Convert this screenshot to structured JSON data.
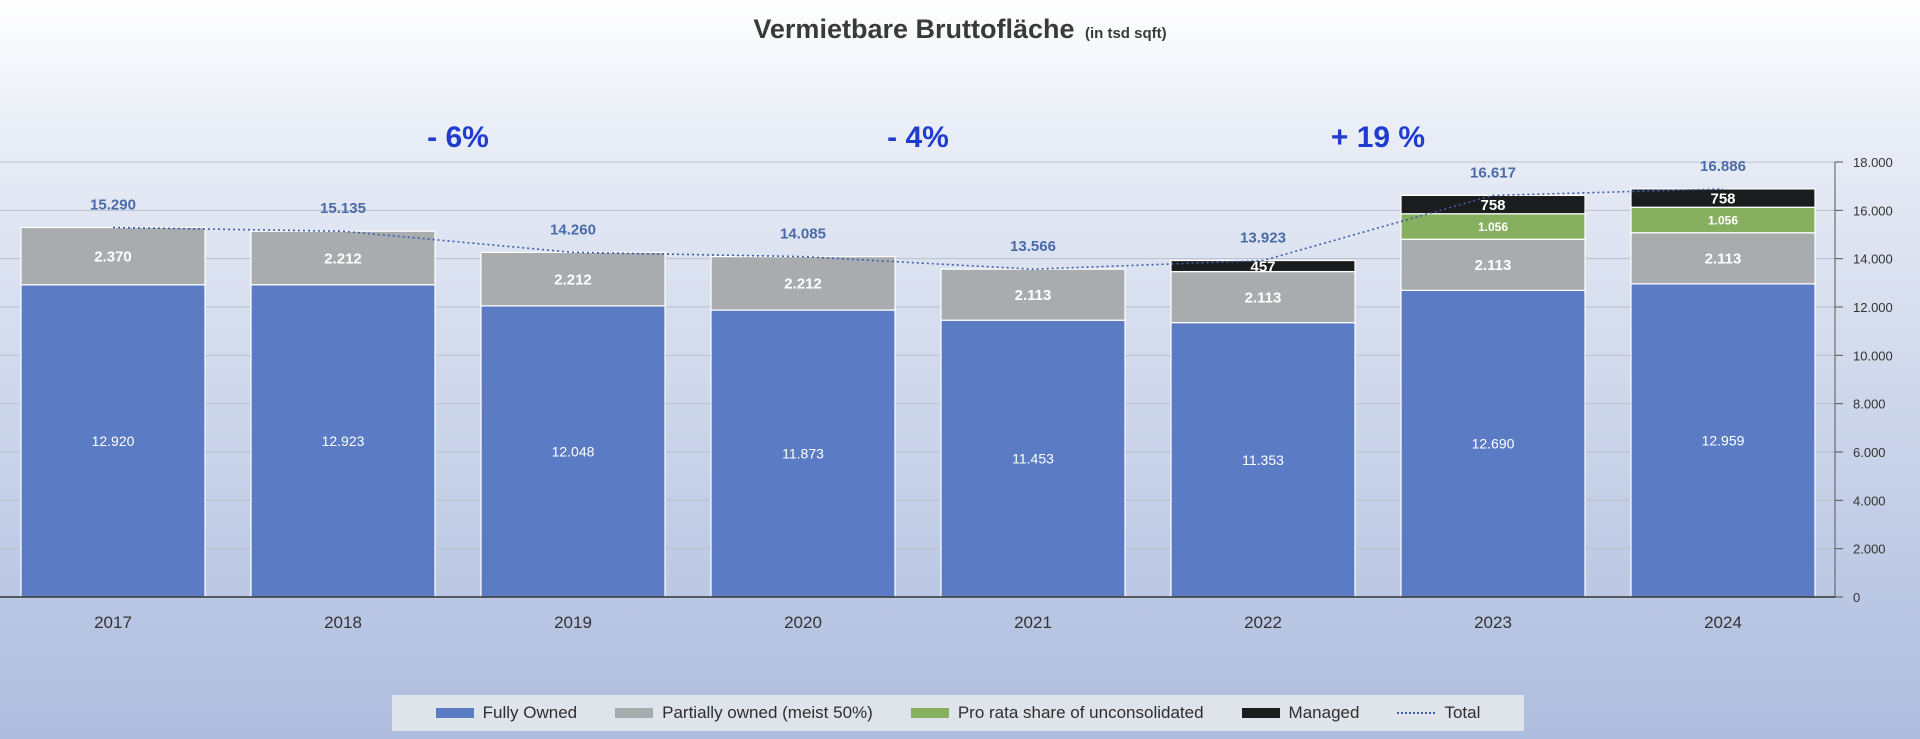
{
  "chart_data": {
    "type": "bar",
    "stacked": true,
    "title": "Vermietbare Bruttofläche",
    "subtitle": "(in tsd sqft)",
    "categories": [
      "2017",
      "2018",
      "2019",
      "2020",
      "2021",
      "2022",
      "2023",
      "2024"
    ],
    "series": [
      {
        "name": "Fully Owned",
        "values": [
          12920,
          12923,
          12048,
          11873,
          11453,
          11353,
          12690,
          12959
        ],
        "labels": [
          "12.920",
          "12.923",
          "12.048",
          "11.873",
          "11.453",
          "11.353",
          "12.690",
          "12.959"
        ],
        "color": "#5b7cc4"
      },
      {
        "name": "Partially owned (meist 50%)",
        "values": [
          2370,
          2212,
          2212,
          2212,
          2113,
          2113,
          2113,
          2113
        ],
        "labels": [
          "2.370",
          "2.212",
          "2.212",
          "2.212",
          "2.113",
          "2.113",
          "2.113",
          "2.113"
        ],
        "color": "#a9acaf"
      },
      {
        "name": "Pro rata share of unconsolidated",
        "values": [
          0,
          0,
          0,
          0,
          0,
          0,
          1056,
          1056
        ],
        "labels": [
          "",
          "",
          "",
          "",
          "",
          "",
          "1.056",
          "1.056"
        ],
        "color": "#86b060"
      },
      {
        "name": "Managed",
        "values": [
          0,
          0,
          0,
          0,
          0,
          457,
          758,
          758
        ],
        "labels": [
          "",
          "",
          "",
          "",
          "",
          "457",
          "758",
          "758"
        ],
        "color": "#1b1c1e"
      }
    ],
    "total": {
      "name": "Total",
      "values": [
        15290,
        15135,
        14260,
        14085,
        13566,
        13923,
        16617,
        16886
      ],
      "labels": [
        "15.290",
        "15.135",
        "14.260",
        "14.085",
        "13.566",
        "13.923",
        "16.617",
        "16.886"
      ],
      "color": "#3c5fa8"
    },
    "annotations": [
      {
        "text": "- 6%",
        "between": [
          "2018",
          "2019"
        ]
      },
      {
        "text": "- 4%",
        "between": [
          "2020",
          "2021"
        ]
      },
      {
        "text": "+ 19 %",
        "between": [
          "2022",
          "2023"
        ]
      }
    ],
    "yaxis": {
      "position": "right",
      "ylim": [
        0,
        18000
      ],
      "ticks": [
        0,
        2000,
        4000,
        6000,
        8000,
        10000,
        12000,
        14000,
        16000,
        18000
      ],
      "tick_labels": [
        "0",
        "2.000",
        "4.000",
        "6.000",
        "8.000",
        "10.000",
        "12.000",
        "14.000",
        "16.000",
        "18.000"
      ]
    },
    "grid": true,
    "legend": "bottom"
  }
}
